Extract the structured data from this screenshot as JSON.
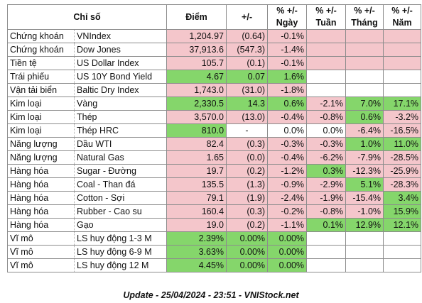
{
  "header": {
    "chi_so": "Chỉ số",
    "diem": "Điểm",
    "change": "+/-",
    "pct_day_top": "% +/-",
    "pct_day_bottom": "Ngày",
    "pct_week_top": "% +/-",
    "pct_week_bottom": "Tuần",
    "pct_month_top": "% +/-",
    "pct_month_bottom": "Tháng",
    "pct_year_top": "% +/-",
    "pct_year_bottom": "Năm"
  },
  "colors": {
    "negative": "#f4c6cb",
    "positive": "#85d66b",
    "neutral": "#ffffff"
  },
  "rows": [
    {
      "cat": "Chứng khoán",
      "name": "VNIndex",
      "diem": "1,204.97",
      "chg": "(0.64)",
      "day": "-0.1%",
      "week": "",
      "month": "",
      "year": "",
      "c": [
        "r",
        "r",
        "r",
        "r",
        "r",
        "r"
      ]
    },
    {
      "cat": "Chứng khoán",
      "name": "Dow Jones",
      "diem": "37,913.6",
      "chg": "(547.3)",
      "day": "-1.4%",
      "week": "",
      "month": "",
      "year": "",
      "c": [
        "r",
        "r",
        "r",
        "r",
        "r",
        "r"
      ]
    },
    {
      "cat": "Tiền tệ",
      "name": "US Dollar Index",
      "diem": "105.7",
      "chg": "(0.1)",
      "day": "-0.1%",
      "week": "",
      "month": "",
      "year": "",
      "c": [
        "r",
        "r",
        "r",
        "r",
        "r",
        "r"
      ]
    },
    {
      "cat": "Trái phiếu",
      "name": "US 10Y Bond Yield",
      "diem": "4.67",
      "chg": "0.07",
      "day": "1.6%",
      "week": "",
      "month": "",
      "year": "",
      "c": [
        "g",
        "g",
        "g",
        "w",
        "w",
        "w"
      ]
    },
    {
      "cat": "Vận tải biển",
      "name": "Baltic Dry Index",
      "diem": "1,743.0",
      "chg": "(31.0)",
      "day": "-1.8%",
      "week": "",
      "month": "",
      "year": "",
      "c": [
        "r",
        "r",
        "r",
        "w",
        "w",
        "w"
      ]
    },
    {
      "cat": "Kim loại",
      "name": "Vàng",
      "diem": "2,330.5",
      "chg": "14.3",
      "day": "0.6%",
      "week": "-2.1%",
      "month": "7.0%",
      "year": "17.1%",
      "c": [
        "g",
        "g",
        "g",
        "r",
        "g",
        "g"
      ]
    },
    {
      "cat": "Kim loại",
      "name": "Thép",
      "diem": "3,570.0",
      "chg": "(13.0)",
      "day": "-0.4%",
      "week": "-0.8%",
      "month": "0.6%",
      "year": "-3.2%",
      "c": [
        "r",
        "r",
        "r",
        "r",
        "g",
        "r"
      ]
    },
    {
      "cat": "Kim loại",
      "name": "Thép HRC",
      "diem": "810.0",
      "chg": "-",
      "day": "0.0%",
      "week": "0.0%",
      "month": "-6.4%",
      "year": "-16.5%",
      "c": [
        "g",
        "w",
        "w",
        "w",
        "r",
        "r"
      ]
    },
    {
      "cat": "Năng lượng",
      "name": "Dầu WTI",
      "diem": "82.4",
      "chg": "(0.3)",
      "day": "-0.3%",
      "week": "-0.3%",
      "month": "1.0%",
      "year": "11.0%",
      "c": [
        "r",
        "r",
        "r",
        "r",
        "g",
        "g"
      ]
    },
    {
      "cat": "Năng lượng",
      "name": "Natural Gas",
      "diem": "1.65",
      "chg": "(0.0)",
      "day": "-0.4%",
      "week": "-6.2%",
      "month": "-7.9%",
      "year": "-28.5%",
      "c": [
        "r",
        "r",
        "r",
        "r",
        "r",
        "r"
      ]
    },
    {
      "cat": "Hàng hóa",
      "name": "Sugar - Đường",
      "diem": "19.7",
      "chg": "(0.2)",
      "day": "-1.2%",
      "week": "0.3%",
      "month": "-12.3%",
      "year": "-25.9%",
      "c": [
        "r",
        "r",
        "r",
        "g",
        "r",
        "r"
      ]
    },
    {
      "cat": "Hàng hóa",
      "name": "Coal - Than đá",
      "diem": "135.5",
      "chg": "(1.3)",
      "day": "-0.9%",
      "week": "-2.9%",
      "month": "5.1%",
      "year": "-28.3%",
      "c": [
        "r",
        "r",
        "r",
        "r",
        "g",
        "r"
      ]
    },
    {
      "cat": "Hàng hóa",
      "name": "Cotton - Sợi",
      "diem": "79.1",
      "chg": "(1.9)",
      "day": "-2.4%",
      "week": "-1.9%",
      "month": "-15.4%",
      "year": "3.4%",
      "c": [
        "r",
        "r",
        "r",
        "r",
        "r",
        "g"
      ]
    },
    {
      "cat": "Hàng hóa",
      "name": "Rubber - Cao su",
      "diem": "160.4",
      "chg": "(0.3)",
      "day": "-0.2%",
      "week": "-0.8%",
      "month": "-1.0%",
      "year": "15.9%",
      "c": [
        "r",
        "r",
        "r",
        "r",
        "r",
        "g"
      ]
    },
    {
      "cat": "Hàng hóa",
      "name": "Gạo",
      "diem": "19.0",
      "chg": "(0.2)",
      "day": "-1.1%",
      "week": "0.1%",
      "month": "12.9%",
      "year": "12.1%",
      "c": [
        "r",
        "r",
        "r",
        "g",
        "g",
        "g"
      ]
    },
    {
      "cat": "Vĩ mô",
      "name": "LS huy động 1-3 M",
      "diem": "2.39%",
      "chg": "0.00%",
      "day": "0.00%",
      "week": "",
      "month": "",
      "year": "",
      "c": [
        "g",
        "g",
        "g",
        "w",
        "w",
        "w"
      ]
    },
    {
      "cat": "Vĩ mô",
      "name": "LS huy động 6-9 M",
      "diem": "3.63%",
      "chg": "0.00%",
      "day": "0.00%",
      "week": "",
      "month": "",
      "year": "",
      "c": [
        "g",
        "g",
        "g",
        "w",
        "w",
        "w"
      ]
    },
    {
      "cat": "Vĩ mô",
      "name": "LS huy động 12 M",
      "diem": "4.45%",
      "chg": "0.00%",
      "day": "0.00%",
      "week": "",
      "month": "",
      "year": "",
      "c": [
        "g",
        "g",
        "g",
        "w",
        "w",
        "w"
      ]
    }
  ],
  "footer": "Update - 25/04/2024 - 23:51 - VNIStock.net"
}
